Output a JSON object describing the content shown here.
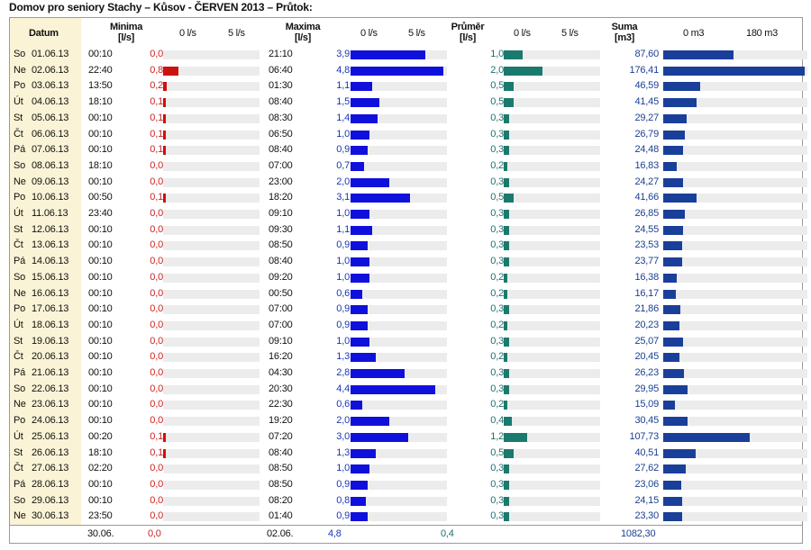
{
  "title": "Domov pro seniory Stachy – Kůsov - ČERVEN 2013 – Průtok:",
  "headers": {
    "datum": "Datum",
    "minima": "Minima",
    "minima_unit": "[l/s]",
    "maxima": "Maxima",
    "maxima_unit": "[l/s]",
    "prumer": "Průměr",
    "prumer_unit": "[l/s]",
    "suma": "Suma",
    "suma_unit": "[m3]"
  },
  "scales": {
    "min_low": "0 l/s",
    "min_high": "5 l/s",
    "max_low": "0 l/s",
    "max_high": "5 l/s",
    "avg_low": "0 l/s",
    "avg_high": "5 l/s",
    "sum_low": "0 m3",
    "sum_high": "180 m3"
  },
  "colors": {
    "minima": "#cc1111",
    "maxima": "#1010dd",
    "prumer": "#1a7a6e",
    "suma": "#1a3f9a",
    "datum_bg": "#faf3d6"
  },
  "chart_data": {
    "type": "table",
    "columns": [
      "Datum",
      "Minima čas",
      "Minima [l/s]",
      "Maxima čas",
      "Maxima [l/s]",
      "Průměr [l/s]",
      "Suma [m3]"
    ],
    "scale_max": {
      "minima": 5,
      "maxima": 5,
      "prumer": 5,
      "suma": 180
    },
    "rows": [
      {
        "day": "So",
        "date": "01.06.13",
        "min_time": "00:10",
        "min": "0,0",
        "max_time": "21:10",
        "max": "3,9",
        "avg": "1,0",
        "sum": "87,60",
        "min_v": 0.0,
        "max_v": 3.9,
        "avg_v": 1.0,
        "sum_v": 87.6
      },
      {
        "day": "Ne",
        "date": "02.06.13",
        "min_time": "22:40",
        "min": "0,8",
        "max_time": "06:40",
        "max": "4,8",
        "avg": "2,0",
        "sum": "176,41",
        "min_v": 0.8,
        "max_v": 4.8,
        "avg_v": 2.0,
        "sum_v": 176.41
      },
      {
        "day": "Po",
        "date": "03.06.13",
        "min_time": "13:50",
        "min": "0,2",
        "max_time": "01:30",
        "max": "1,1",
        "avg": "0,5",
        "sum": "46,59",
        "min_v": 0.2,
        "max_v": 1.1,
        "avg_v": 0.5,
        "sum_v": 46.59
      },
      {
        "day": "Út",
        "date": "04.06.13",
        "min_time": "18:10",
        "min": "0,1",
        "max_time": "08:40",
        "max": "1,5",
        "avg": "0,5",
        "sum": "41,45",
        "min_v": 0.1,
        "max_v": 1.5,
        "avg_v": 0.5,
        "sum_v": 41.45
      },
      {
        "day": "St",
        "date": "05.06.13",
        "min_time": "00:10",
        "min": "0,1",
        "max_time": "08:30",
        "max": "1,4",
        "avg": "0,3",
        "sum": "29,27",
        "min_v": 0.1,
        "max_v": 1.4,
        "avg_v": 0.3,
        "sum_v": 29.27
      },
      {
        "day": "Čt",
        "date": "06.06.13",
        "min_time": "00:10",
        "min": "0,1",
        "max_time": "06:50",
        "max": "1,0",
        "avg": "0,3",
        "sum": "26,79",
        "min_v": 0.1,
        "max_v": 1.0,
        "avg_v": 0.3,
        "sum_v": 26.79
      },
      {
        "day": "Pá",
        "date": "07.06.13",
        "min_time": "00:10",
        "min": "0,1",
        "max_time": "08:40",
        "max": "0,9",
        "avg": "0,3",
        "sum": "24,48",
        "min_v": 0.1,
        "max_v": 0.9,
        "avg_v": 0.3,
        "sum_v": 24.48
      },
      {
        "day": "So",
        "date": "08.06.13",
        "min_time": "18:10",
        "min": "0,0",
        "max_time": "07:00",
        "max": "0,7",
        "avg": "0,2",
        "sum": "16,83",
        "min_v": 0.0,
        "max_v": 0.7,
        "avg_v": 0.2,
        "sum_v": 16.83
      },
      {
        "day": "Ne",
        "date": "09.06.13",
        "min_time": "00:10",
        "min": "0,0",
        "max_time": "23:00",
        "max": "2,0",
        "avg": "0,3",
        "sum": "24,27",
        "min_v": 0.0,
        "max_v": 2.0,
        "avg_v": 0.3,
        "sum_v": 24.27
      },
      {
        "day": "Po",
        "date": "10.06.13",
        "min_time": "00:50",
        "min": "0,1",
        "max_time": "18:20",
        "max": "3,1",
        "avg": "0,5",
        "sum": "41,66",
        "min_v": 0.1,
        "max_v": 3.1,
        "avg_v": 0.5,
        "sum_v": 41.66
      },
      {
        "day": "Út",
        "date": "11.06.13",
        "min_time": "23:40",
        "min": "0,0",
        "max_time": "09:10",
        "max": "1,0",
        "avg": "0,3",
        "sum": "26,85",
        "min_v": 0.0,
        "max_v": 1.0,
        "avg_v": 0.3,
        "sum_v": 26.85
      },
      {
        "day": "St",
        "date": "12.06.13",
        "min_time": "00:10",
        "min": "0,0",
        "max_time": "09:30",
        "max": "1,1",
        "avg": "0,3",
        "sum": "24,55",
        "min_v": 0.0,
        "max_v": 1.1,
        "avg_v": 0.3,
        "sum_v": 24.55
      },
      {
        "day": "Čt",
        "date": "13.06.13",
        "min_time": "00:10",
        "min": "0,0",
        "max_time": "08:50",
        "max": "0,9",
        "avg": "0,3",
        "sum": "23,53",
        "min_v": 0.0,
        "max_v": 0.9,
        "avg_v": 0.3,
        "sum_v": 23.53
      },
      {
        "day": "Pá",
        "date": "14.06.13",
        "min_time": "00:10",
        "min": "0,0",
        "max_time": "08:40",
        "max": "1,0",
        "avg": "0,3",
        "sum": "23,77",
        "min_v": 0.0,
        "max_v": 1.0,
        "avg_v": 0.3,
        "sum_v": 23.77
      },
      {
        "day": "So",
        "date": "15.06.13",
        "min_time": "00:10",
        "min": "0,0",
        "max_time": "09:20",
        "max": "1,0",
        "avg": "0,2",
        "sum": "16,38",
        "min_v": 0.0,
        "max_v": 1.0,
        "avg_v": 0.2,
        "sum_v": 16.38
      },
      {
        "day": "Ne",
        "date": "16.06.13",
        "min_time": "00:10",
        "min": "0,0",
        "max_time": "00:50",
        "max": "0,6",
        "avg": "0,2",
        "sum": "16,17",
        "min_v": 0.0,
        "max_v": 0.6,
        "avg_v": 0.2,
        "sum_v": 16.17
      },
      {
        "day": "Po",
        "date": "17.06.13",
        "min_time": "00:10",
        "min": "0,0",
        "max_time": "07:00",
        "max": "0,9",
        "avg": "0,3",
        "sum": "21,86",
        "min_v": 0.0,
        "max_v": 0.9,
        "avg_v": 0.3,
        "sum_v": 21.86
      },
      {
        "day": "Út",
        "date": "18.06.13",
        "min_time": "00:10",
        "min": "0,0",
        "max_time": "07:00",
        "max": "0,9",
        "avg": "0,2",
        "sum": "20,23",
        "min_v": 0.0,
        "max_v": 0.9,
        "avg_v": 0.2,
        "sum_v": 20.23
      },
      {
        "day": "St",
        "date": "19.06.13",
        "min_time": "00:10",
        "min": "0,0",
        "max_time": "09:10",
        "max": "1,0",
        "avg": "0,3",
        "sum": "25,07",
        "min_v": 0.0,
        "max_v": 1.0,
        "avg_v": 0.3,
        "sum_v": 25.07
      },
      {
        "day": "Čt",
        "date": "20.06.13",
        "min_time": "00:10",
        "min": "0,0",
        "max_time": "16:20",
        "max": "1,3",
        "avg": "0,2",
        "sum": "20,45",
        "min_v": 0.0,
        "max_v": 1.3,
        "avg_v": 0.2,
        "sum_v": 20.45
      },
      {
        "day": "Pá",
        "date": "21.06.13",
        "min_time": "00:10",
        "min": "0,0",
        "max_time": "04:30",
        "max": "2,8",
        "avg": "0,3",
        "sum": "26,23",
        "min_v": 0.0,
        "max_v": 2.8,
        "avg_v": 0.3,
        "sum_v": 26.23
      },
      {
        "day": "So",
        "date": "22.06.13",
        "min_time": "00:10",
        "min": "0,0",
        "max_time": "20:30",
        "max": "4,4",
        "avg": "0,3",
        "sum": "29,95",
        "min_v": 0.0,
        "max_v": 4.4,
        "avg_v": 0.3,
        "sum_v": 29.95
      },
      {
        "day": "Ne",
        "date": "23.06.13",
        "min_time": "00:10",
        "min": "0,0",
        "max_time": "22:30",
        "max": "0,6",
        "avg": "0,2",
        "sum": "15,09",
        "min_v": 0.0,
        "max_v": 0.6,
        "avg_v": 0.2,
        "sum_v": 15.09
      },
      {
        "day": "Po",
        "date": "24.06.13",
        "min_time": "00:10",
        "min": "0,0",
        "max_time": "19:20",
        "max": "2,0",
        "avg": "0,4",
        "sum": "30,45",
        "min_v": 0.0,
        "max_v": 2.0,
        "avg_v": 0.4,
        "sum_v": 30.45
      },
      {
        "day": "Út",
        "date": "25.06.13",
        "min_time": "00:20",
        "min": "0,1",
        "max_time": "07:20",
        "max": "3,0",
        "avg": "1,2",
        "sum": "107,73",
        "min_v": 0.1,
        "max_v": 3.0,
        "avg_v": 1.2,
        "sum_v": 107.73
      },
      {
        "day": "St",
        "date": "26.06.13",
        "min_time": "18:10",
        "min": "0,1",
        "max_time": "08:40",
        "max": "1,3",
        "avg": "0,5",
        "sum": "40,51",
        "min_v": 0.1,
        "max_v": 1.3,
        "avg_v": 0.5,
        "sum_v": 40.51
      },
      {
        "day": "Čt",
        "date": "27.06.13",
        "min_time": "02:20",
        "min": "0,0",
        "max_time": "08:50",
        "max": "1,0",
        "avg": "0,3",
        "sum": "27,62",
        "min_v": 0.0,
        "max_v": 1.0,
        "avg_v": 0.3,
        "sum_v": 27.62
      },
      {
        "day": "Pá",
        "date": "28.06.13",
        "min_time": "00:10",
        "min": "0,0",
        "max_time": "08:50",
        "max": "0,9",
        "avg": "0,3",
        "sum": "23,06",
        "min_v": 0.0,
        "max_v": 0.9,
        "avg_v": 0.3,
        "sum_v": 23.06
      },
      {
        "day": "So",
        "date": "29.06.13",
        "min_time": "00:10",
        "min": "0,0",
        "max_time": "08:20",
        "max": "0,8",
        "avg": "0,3",
        "sum": "24,15",
        "min_v": 0.0,
        "max_v": 0.8,
        "avg_v": 0.3,
        "sum_v": 24.15
      },
      {
        "day": "Ne",
        "date": "30.06.13",
        "min_time": "23:50",
        "min": "0,0",
        "max_time": "01:40",
        "max": "0,9",
        "avg": "0,3",
        "sum": "23,30",
        "min_v": 0.0,
        "max_v": 0.9,
        "avg_v": 0.3,
        "sum_v": 23.3
      }
    ]
  },
  "footer": {
    "min_date": "30.06.",
    "min_value": "0,0",
    "max_date": "02.06.",
    "max_value": "4,8",
    "avg_value": "0,4",
    "sum_value": "1082,30"
  }
}
